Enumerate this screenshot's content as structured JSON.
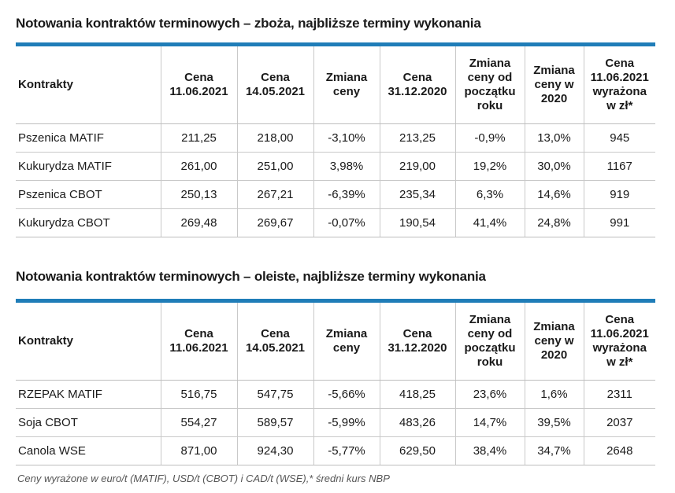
{
  "tables": [
    {
      "title": "Notowania kontraktów terminowych – zboża, najbliższe terminy wykonania",
      "headers": [
        [
          "Kontrakty"
        ],
        [
          "Cena",
          "11.06.2021"
        ],
        [
          "Cena",
          "14.05.2021"
        ],
        [
          "Zmiana",
          "ceny"
        ],
        [
          "Cena",
          "31.12.2020"
        ],
        [
          "Zmiana",
          "ceny od",
          "początku",
          "roku"
        ],
        [
          "Zmiana",
          "ceny w",
          "2020"
        ],
        [
          "Cena",
          "11.06.2021",
          "wyrażona",
          "w zł*"
        ]
      ],
      "rows": [
        [
          "Pszenica MATIF",
          "211,25",
          "218,00",
          "-3,10%",
          "213,25",
          "-0,9%",
          "13,0%",
          "945"
        ],
        [
          "Kukurydza MATIF",
          "261,00",
          "251,00",
          "3,98%",
          "219,00",
          "19,2%",
          "30,0%",
          "1167"
        ],
        [
          "Pszenica CBOT",
          "250,13",
          "267,21",
          "-6,39%",
          "235,34",
          "6,3%",
          "14,6%",
          "919"
        ],
        [
          "Kukurydza CBOT",
          "269,48",
          "269,67",
          "-0,07%",
          "190,54",
          "41,4%",
          "24,8%",
          "991"
        ]
      ]
    },
    {
      "title": "Notowania kontraktów terminowych – oleiste, najbliższe terminy wykonania",
      "headers": [
        [
          "Kontrakty"
        ],
        [
          "Cena",
          "11.06.2021"
        ],
        [
          "Cena",
          "14.05.2021"
        ],
        [
          "Zmiana",
          "ceny"
        ],
        [
          "Cena",
          "31.12.2020"
        ],
        [
          "Zmiana",
          "ceny od",
          "początku",
          "roku"
        ],
        [
          "Zmiana",
          "ceny w",
          "2020"
        ],
        [
          "Cena",
          "11.06.2021",
          "wyrażona",
          "w zł*"
        ]
      ],
      "rows": [
        [
          "RZEPAK MATIF",
          "516,75",
          "547,75",
          "-5,66%",
          "418,25",
          "23,6%",
          "1,6%",
          "2311"
        ],
        [
          "Soja CBOT",
          "554,27",
          "589,57",
          "-5,99%",
          "483,26",
          "14,7%",
          "39,5%",
          "2037"
        ],
        [
          "Canola WSE",
          "871,00",
          "924,30",
          "-5,77%",
          "629,50",
          "38,4%",
          "34,7%",
          "2648"
        ]
      ]
    }
  ],
  "footnote": "Ceny wyrażone w euro/t (MATIF), USD/t (CBOT) i CAD/t (WSE),* średni kurs NBP",
  "colors": {
    "accent_rule": "#1f7db8",
    "grid": "#c9c9c9",
    "text": "#1a1a1a"
  }
}
